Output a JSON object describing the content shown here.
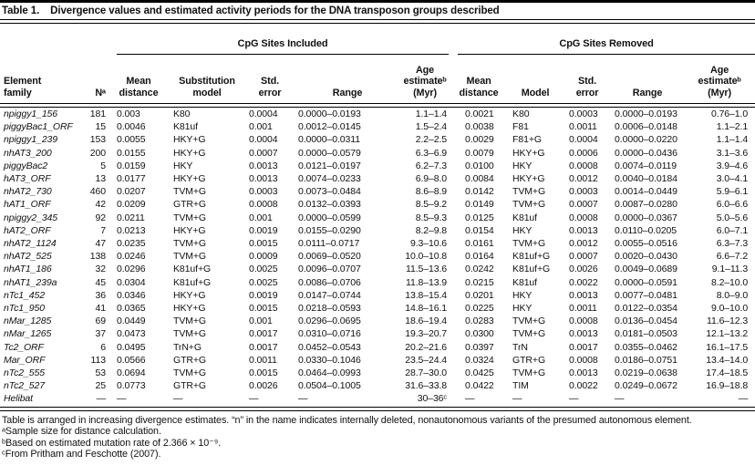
{
  "title": {
    "label": "Table 1.",
    "text": "Divergence values and estimated activity periods for the DNA transposon groups described"
  },
  "header": {
    "group_included": "CpG Sites Included",
    "group_removed": "CpG Sites Removed",
    "columns": [
      "Element\nfamily",
      "Nᵃ",
      "Mean\ndistance",
      "Substitution\nmodel",
      "Std.\nerror",
      "Range",
      "Age\nestimateᵇ\n(Myr)",
      "Mean\ndistance",
      "Model",
      "Std.\nerror",
      "Range",
      "Age\nestimateᵇ\n(Myr)"
    ]
  },
  "rows": [
    [
      "npiggy1_156",
      "181",
      "0.003",
      "K80",
      "0.0004",
      "0.0000–0.0193",
      "1.1–1.4",
      "0.0021",
      "K80",
      "0.0003",
      "0.0000–0.0193",
      "0.76–1.0"
    ],
    [
      "piggyBac1_ORF",
      "15",
      "0.0046",
      "K81uf",
      "0.001",
      "0.0012–0.0145",
      "1.5–2.4",
      "0.0038",
      "F81",
      "0.0011",
      "0.0006–0.0148",
      "1.1–2.1"
    ],
    [
      "npiggy1_239",
      "153",
      "0.0055",
      "HKY+G",
      "0.0004",
      "0.0000–0.0311",
      "2.2–2.5",
      "0.0029",
      "F81+G",
      "0.0004",
      "0.0000–0.0220",
      "1.1–1.4"
    ],
    [
      "nhAT3_200",
      "200",
      "0.0155",
      "HKY+G",
      "0.0007",
      "0.0000–0.0579",
      "6.3–6.9",
      "0.0079",
      "HKY+G",
      "0.0006",
      "0.0000–0.0436",
      "3.1–3.6"
    ],
    [
      "piggyBac2",
      "5",
      "0.0159",
      "HKY",
      "0.0013",
      "0.0121–0.0197",
      "6.2–7.3",
      "0.0100",
      "HKY",
      "0.0008",
      "0.0074–0.0119",
      "3.9–4.6"
    ],
    [
      "hAT3_ORF",
      "13",
      "0.0177",
      "HKY+G",
      "0.0013",
      "0.0074–0.0233",
      "6.9–8.0",
      "0.0084",
      "HKY+G",
      "0.0012",
      "0.0040–0.0184",
      "3.0–4.1"
    ],
    [
      "nhAT2_730",
      "460",
      "0.0207",
      "TVM+G",
      "0.0003",
      "0.0073–0.0484",
      "8.6–8.9",
      "0.0142",
      "TVM+G",
      "0.0003",
      "0.0014–0.0449",
      "5.9–6.1"
    ],
    [
      "hAT1_ORF",
      "42",
      "0.0209",
      "GTR+G",
      "0.0008",
      "0.0132–0.0393",
      "8.5–9.2",
      "0.0149",
      "TVM+G",
      "0.0007",
      "0.0087–0.0280",
      "6.0–6.6"
    ],
    [
      "npiggy2_345",
      "92",
      "0.0211",
      "TVM+G",
      "0.001",
      "0.0000–0.0599",
      "8.5–9.3",
      "0.0125",
      "K81uf",
      "0.0008",
      "0.0000–0.0367",
      "5.0–5.6"
    ],
    [
      "hAT2_ORF",
      "7",
      "0.0213",
      "HKY+G",
      "0.0019",
      "0.0155–0.0290",
      "8.2–9.8",
      "0.0154",
      "HKY",
      "0.0013",
      "0.0110–0.0205",
      "6.0–7.1"
    ],
    [
      "nhAT2_1124",
      "47",
      "0.0235",
      "TVM+G",
      "0.0015",
      "0.0111–0.0717",
      "9.3–10.6",
      "0.0161",
      "TVM+G",
      "0.0012",
      "0.0055–0.0516",
      "6.3–7.3"
    ],
    [
      "nhAT2_525",
      "138",
      "0.0246",
      "TVM+G",
      "0.0009",
      "0.0069–0.0520",
      "10.0–10.8",
      "0.0164",
      "K81uf+G",
      "0.0007",
      "0.0020–0.0430",
      "6.6–7.2"
    ],
    [
      "nhAT1_186",
      "32",
      "0.0296",
      "K81uf+G",
      "0.0025",
      "0.0096–0.0707",
      "11.5–13.6",
      "0.0242",
      "K81uf+G",
      "0.0026",
      "0.0049–0.0689",
      "9.1–11.3"
    ],
    [
      "nhAT1_239a",
      "45",
      "0.0304",
      "K81uf+G",
      "0.0025",
      "0.0086–0.0706",
      "11.8–13.9",
      "0.0215",
      "K81uf",
      "0.0022",
      "0.0000–0.0591",
      "8.2–10.0"
    ],
    [
      "nTc1_452",
      "36",
      "0.0346",
      "HKY+G",
      "0.0019",
      "0.0147–0.0744",
      "13.8–15.4",
      "0.0201",
      "HKY",
      "0.0013",
      "0.0077–0.0481",
      "8.0–9.0"
    ],
    [
      "nTc1_950",
      "41",
      "0.0365",
      "HKY+G",
      "0.0015",
      "0.0218–0.0593",
      "14.8–16.1",
      "0.0225",
      "HKY",
      "0.0011",
      "0.0122–0.0354",
      "9.0–10.0"
    ],
    [
      "nMar_1285",
      "69",
      "0.0449",
      "TVM+G",
      "0.001",
      "0.0296–0.0695",
      "18.6–19.4",
      "0.0283",
      "TVM+G",
      "0.0008",
      "0.0136–0.0454",
      "11.6–12.3"
    ],
    [
      "nMar_1265",
      "37",
      "0.0473",
      "TVM+G",
      "0.0017",
      "0.0310–0.0716",
      "19.3–20.7",
      "0.0300",
      "TVM+G",
      "0.0013",
      "0.0181–0.0503",
      "12.1–13.2"
    ],
    [
      "Tc2_ORF",
      "6",
      "0.0495",
      "TrN+G",
      "0.0017",
      "0.0452–0.0543",
      "20.2–21.6",
      "0.0397",
      "TrN",
      "0.0017",
      "0.0355–0.0462",
      "16.1–17.5"
    ],
    [
      "Mar_ORF",
      "113",
      "0.0566",
      "GTR+G",
      "0.0011",
      "0.0330–0.1046",
      "23.5–24.4",
      "0.0324",
      "GTR+G",
      "0.0008",
      "0.0186–0.0751",
      "13.4–14.0"
    ],
    [
      "nTc2_555",
      "53",
      "0.0694",
      "TVM+G",
      "0.0015",
      "0.0464–0.0993",
      "28.7–30.0",
      "0.0425",
      "TVM+G",
      "0.0013",
      "0.0219–0.0638",
      "17.4–18.5"
    ],
    [
      "nTc2_527",
      "25",
      "0.0773",
      "GTR+G",
      "0.0026",
      "0.0504–0.1005",
      "31.6–33.8",
      "0.0422",
      "TIM",
      "0.0022",
      "0.0249–0.0672",
      "16.9–18.8"
    ],
    [
      "Helibat",
      "—",
      "—",
      "—",
      "—",
      "—",
      "30–36ᶜ",
      "—",
      "—",
      "—",
      "—",
      "—"
    ]
  ],
  "footnotes": [
    "Table is arranged in increasing divergence estimates. “n” in the name indicates internally deleted, nonautonomous variants of the presumed autonomous element.",
    "ᵃSample size for distance calculation.",
    "ᵇBased on estimated mutation rate of 2.366 × 10⁻⁹.",
    "ᶜFrom Pritham and Feschotte (2007)."
  ]
}
